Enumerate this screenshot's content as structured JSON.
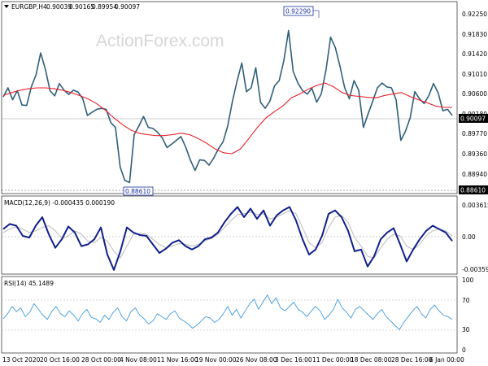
{
  "chart_data": [
    {
      "type": "line",
      "title": "EURGBP,H4",
      "ohlc": [
        "0.90039",
        "0.90165",
        "0.89954",
        "0.90097"
      ],
      "watermark": "ActionForex.com",
      "series": [
        {
          "name": "price",
          "color": "#2f5f7a",
          "values": [
            0.9049,
            0.9068,
            0.9043,
            0.9062,
            0.9032,
            0.9031,
            0.907,
            0.9095,
            0.9141,
            0.9107,
            0.9062,
            0.9051,
            0.9077,
            0.9063,
            0.9054,
            0.9063,
            0.9059,
            0.9045,
            0.901,
            0.9017,
            0.9023,
            0.9025,
            0.9023,
            0.8995,
            0.8985,
            0.8902,
            0.8874,
            0.887,
            0.897,
            0.8988,
            0.9008,
            0.8985,
            0.8983,
            0.8975,
            0.8963,
            0.8943,
            0.895,
            0.8958,
            0.8966,
            0.8944,
            0.8917,
            0.8895,
            0.8917,
            0.8916,
            0.8906,
            0.8921,
            0.894,
            0.8955,
            0.8988,
            0.904,
            0.9082,
            0.912,
            0.906,
            0.9068,
            0.911,
            0.9038,
            0.9025,
            0.904,
            0.9072,
            0.9083,
            0.9125,
            0.9188,
            0.9102,
            0.9078,
            0.9062,
            0.9055,
            0.9067,
            0.9038,
            0.9055,
            0.9105,
            0.9174,
            0.9152,
            0.9113,
            0.9068,
            0.9045,
            0.9083,
            0.9063,
            0.8985,
            0.9013,
            0.904,
            0.9068,
            0.9078,
            0.907,
            0.9068,
            0.9043,
            0.8958,
            0.8977,
            0.9005,
            0.906,
            0.9045,
            0.9035,
            0.9052,
            0.9077,
            0.9057,
            0.902,
            0.9023,
            0.901
          ]
        },
        {
          "name": "ma",
          "color": "#e8202a",
          "values": [
            0.9052,
            0.9058,
            0.9063,
            0.9066,
            0.9068,
            0.9068,
            0.9066,
            0.9063,
            0.9058,
            0.9052,
            0.9045,
            0.9035,
            0.9022,
            0.9006,
            0.8992,
            0.898,
            0.8973,
            0.897,
            0.8968,
            0.8968,
            0.897,
            0.8973,
            0.897,
            0.8962,
            0.8952,
            0.894,
            0.8932,
            0.893,
            0.894,
            0.8962,
            0.8985,
            0.9005,
            0.9018,
            0.903,
            0.9047,
            0.9055,
            0.9065,
            0.9073,
            0.9078,
            0.907,
            0.9058,
            0.9052,
            0.905,
            0.9048,
            0.9047,
            0.9052,
            0.9055,
            0.9058,
            0.905,
            0.9043,
            0.9037,
            0.903,
            0.9027,
            0.9027
          ]
        },
        {
          "name": "macd",
          "color": "#10208a",
          "values": [
            0.0008,
            0.0014,
            0.0012,
            0.0,
            -0.0002,
            0.0012,
            0.0022,
            0.0002,
            -0.0014,
            -0.0004,
            0.0011,
            0.0004,
            -0.0012,
            -0.001,
            -0.0004,
            0.001,
            -0.0022,
            -0.004,
            -0.0018,
            0.001,
            0.0004,
            0.0001,
            0.0,
            -0.001,
            -0.002,
            -0.0015,
            -0.0008,
            -0.0005,
            -0.0012,
            -0.0016,
            -0.0012,
            -0.0004,
            -0.0002,
            0.0004,
            0.0016,
            0.0026,
            0.0034,
            0.0022,
            0.0032,
            0.002,
            0.003,
            0.0012,
            0.0024,
            0.003,
            0.0034,
            0.0018,
            -0.0004,
            -0.0022,
            -0.0016,
            0.0,
            0.0026,
            0.003,
            0.0022,
            0.0006,
            -0.0018,
            -0.0016,
            -0.0036,
            -0.0024,
            -0.0004,
            0.0004,
            0.0009,
            -0.001,
            -0.003,
            -0.0016,
            -0.0004,
            0.0006,
            0.0012,
            0.0008,
            0.0004,
            -0.0006
          ]
        },
        {
          "name": "macd_signal",
          "color": "#bcbcbc",
          "values": [
            0.0004,
            0.0008,
            0.0011,
            0.0008,
            0.0004,
            0.0006,
            0.001,
            0.0012,
            0.0006,
            -0.0003,
            0.0,
            0.0006,
            0.0002,
            -0.0006,
            -0.0008,
            -0.0002,
            -0.0006,
            -0.0018,
            -0.0026,
            -0.0012,
            0.0002,
            0.0003,
            0.0002,
            -0.0004,
            -0.001,
            -0.0014,
            -0.0012,
            -0.0009,
            -0.001,
            -0.0012,
            -0.001,
            -0.0006,
            -0.0003,
            0.0002,
            0.001,
            0.0018,
            0.0025,
            0.0026,
            0.0028,
            0.0025,
            0.0026,
            0.002,
            0.0022,
            0.0026,
            0.003,
            0.0026,
            0.001,
            -0.0008,
            -0.0014,
            -0.0008,
            0.001,
            0.0022,
            0.0024,
            0.0016,
            -0.0002,
            -0.0012,
            -0.0024,
            -0.0026,
            -0.0014,
            -0.0004,
            0.0002,
            0.0,
            -0.0012,
            -0.0016,
            -0.001,
            0.0,
            0.0006,
            0.0008,
            0.0006,
            0.0
          ]
        },
        {
          "name": "rsi",
          "color": "#3f9be0",
          "values": [
            45,
            52,
            62,
            55,
            60,
            48,
            54,
            66,
            58,
            50,
            44,
            55,
            62,
            52,
            48,
            56,
            50,
            42,
            52,
            58,
            47,
            45,
            40,
            50,
            44,
            54,
            60,
            48,
            42,
            55,
            60,
            50,
            45,
            38,
            42,
            52,
            48,
            44,
            52,
            56,
            46,
            42,
            38,
            32,
            36,
            42,
            48,
            46,
            40,
            44,
            52,
            62,
            50,
            58,
            46,
            56,
            66,
            72,
            58,
            68,
            78,
            66,
            74,
            60,
            56,
            62,
            68,
            58,
            54,
            48,
            56,
            62,
            56,
            44,
            50,
            58,
            72,
            60,
            54,
            46,
            58,
            62,
            56,
            50,
            44,
            52,
            58,
            48,
            42,
            36,
            30,
            40,
            48,
            56,
            62,
            52,
            46,
            58,
            64,
            56,
            50,
            48,
            44
          ]
        }
      ],
      "price_axis": {
        "ticks": [
          "0.92250",
          "0.91830",
          "0.91420",
          "0.91010",
          "0.90600",
          "0.90180",
          "0.89770",
          "0.89360",
          "0.88940"
        ],
        "current": "0.90097",
        "low_line": "0.88610",
        "ylim": [
          0.885,
          0.9245
        ]
      },
      "annotations": [
        {
          "text": "0.92290",
          "value": 0.9229
        },
        {
          "text": "0.88610",
          "value": 0.8861
        }
      ],
      "macd": {
        "title": "MACD(12,26,9) -0.000435 0.000190",
        "ticks": [
          "0.003615",
          "0.00",
          "-0.003592"
        ],
        "ylim": [
          -0.0043,
          0.0045
        ]
      },
      "rsi": {
        "title": "RSI(14) 45.1489",
        "ticks": [
          "100",
          "70",
          "30",
          "0"
        ],
        "levels": [
          70,
          30
        ],
        "ylim": [
          0,
          100
        ]
      },
      "xlabels": [
        "13 Oct 2020",
        "20 Oct 16:00",
        "28 Oct 00:00",
        "4 Nov 08:00",
        "11 Nov 16:00",
        "19 Nov 00:00",
        "26 Nov 08:00",
        "3 Dec 16:00",
        "11 Dec 00:00",
        "18 Dec 08:00",
        "28 Dec 16:00",
        "6 Jan 00:00"
      ],
      "grid": false
    }
  ]
}
